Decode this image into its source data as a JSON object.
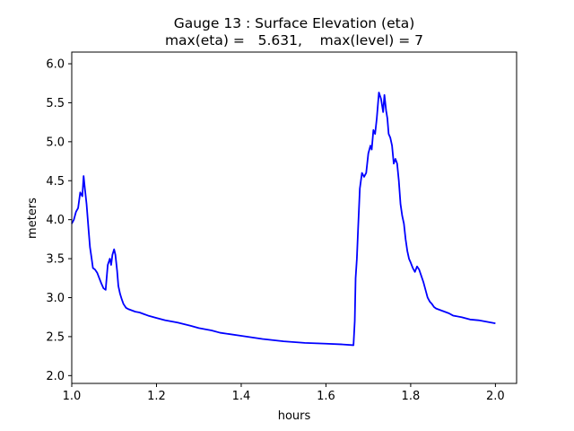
{
  "chart_data": {
    "type": "line",
    "title": "Gauge 13 : Surface Elevation (eta)",
    "subtitle": "max(eta) =   5.631,    max(level) = 7",
    "xlabel": "hours",
    "ylabel": "meters",
    "xlim": [
      1.0,
      2.05
    ],
    "ylim": [
      1.9,
      6.15
    ],
    "x_ticks": [
      1.0,
      1.2,
      1.4,
      1.6,
      1.8,
      2.0
    ],
    "x_tick_labels": [
      "1.0",
      "1.2",
      "1.4",
      "1.6",
      "1.8",
      "2.0"
    ],
    "y_ticks": [
      2.0,
      2.5,
      3.0,
      3.5,
      4.0,
      4.5,
      5.0,
      5.5,
      6.0
    ],
    "y_tick_labels": [
      "2.0",
      "2.5",
      "3.0",
      "3.5",
      "4.0",
      "4.5",
      "5.0",
      "5.5",
      "6.0"
    ],
    "grid": false,
    "colors": {
      "line": "#0000ff",
      "axes": "#000000"
    },
    "series": [
      {
        "x": [
          1.0,
          1.005,
          1.01,
          1.015,
          1.02,
          1.025,
          1.028,
          1.031,
          1.035,
          1.04,
          1.043,
          1.047,
          1.05,
          1.055,
          1.06,
          1.065,
          1.07,
          1.075,
          1.08,
          1.085,
          1.09,
          1.093,
          1.096,
          1.1,
          1.103,
          1.107,
          1.11,
          1.114,
          1.118,
          1.122,
          1.128,
          1.135,
          1.14,
          1.15,
          1.16,
          1.17,
          1.18,
          1.2,
          1.22,
          1.25,
          1.28,
          1.3,
          1.33,
          1.35,
          1.4,
          1.45,
          1.5,
          1.55,
          1.6,
          1.64,
          1.665,
          1.668,
          1.67,
          1.673,
          1.676,
          1.68,
          1.685,
          1.69,
          1.695,
          1.7,
          1.705,
          1.708,
          1.712,
          1.716,
          1.72,
          1.725,
          1.73,
          1.735,
          1.738,
          1.742,
          1.745,
          1.748,
          1.752,
          1.756,
          1.76,
          1.764,
          1.768,
          1.772,
          1.776,
          1.78,
          1.784,
          1.788,
          1.792,
          1.796,
          1.8,
          1.805,
          1.81,
          1.815,
          1.82,
          1.825,
          1.83,
          1.835,
          1.84,
          1.845,
          1.85,
          1.855,
          1.86,
          1.87,
          1.88,
          1.89,
          1.9,
          1.92,
          1.94,
          1.96,
          1.98,
          2.0
        ],
        "y": [
          3.95,
          4.0,
          4.1,
          4.15,
          4.35,
          4.3,
          4.56,
          4.4,
          4.2,
          3.85,
          3.65,
          3.5,
          3.38,
          3.36,
          3.32,
          3.25,
          3.18,
          3.12,
          3.1,
          3.42,
          3.5,
          3.42,
          3.55,
          3.62,
          3.55,
          3.35,
          3.15,
          3.05,
          2.98,
          2.92,
          2.87,
          2.85,
          2.84,
          2.82,
          2.81,
          2.79,
          2.77,
          2.74,
          2.71,
          2.68,
          2.64,
          2.61,
          2.58,
          2.55,
          2.51,
          2.47,
          2.44,
          2.42,
          2.41,
          2.4,
          2.39,
          2.7,
          3.25,
          3.5,
          3.9,
          4.4,
          4.6,
          4.55,
          4.6,
          4.85,
          4.95,
          4.9,
          5.15,
          5.1,
          5.3,
          5.631,
          5.55,
          5.38,
          5.6,
          5.4,
          5.3,
          5.1,
          5.05,
          4.95,
          4.72,
          4.78,
          4.72,
          4.5,
          4.2,
          4.05,
          3.95,
          3.75,
          3.6,
          3.5,
          3.45,
          3.38,
          3.33,
          3.4,
          3.36,
          3.28,
          3.2,
          3.1,
          3.0,
          2.95,
          2.92,
          2.88,
          2.86,
          2.84,
          2.82,
          2.8,
          2.77,
          2.75,
          2.72,
          2.71,
          2.69,
          2.67
        ]
      }
    ]
  }
}
